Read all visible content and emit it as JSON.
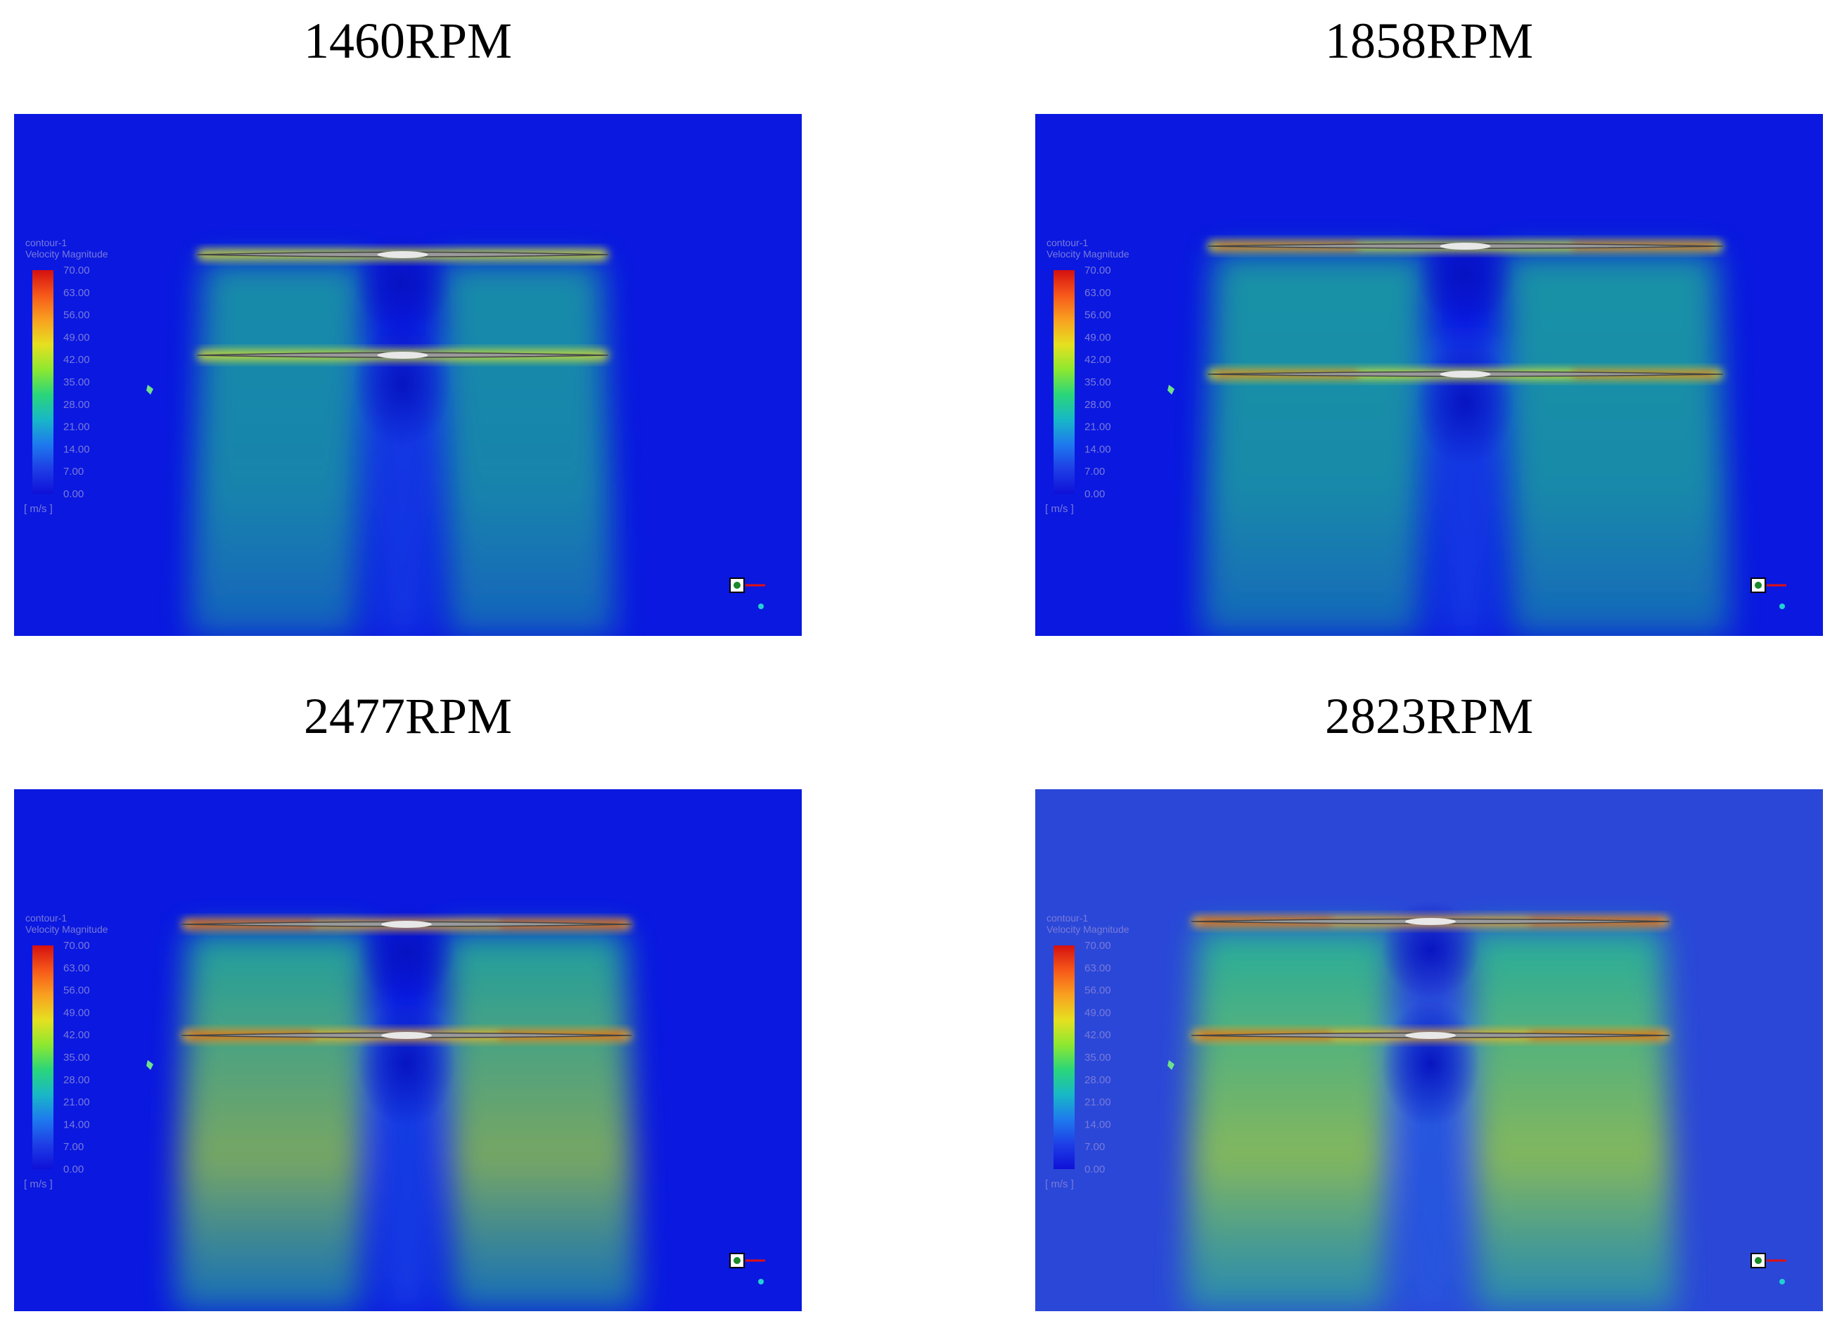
{
  "legend": {
    "name": "contour-1",
    "quantity": "Velocity Magnitude",
    "ticks": [
      "70.00",
      "63.00",
      "56.00",
      "49.00",
      "42.00",
      "35.00",
      "28.00",
      "21.00",
      "14.00",
      "7.00",
      "0.00"
    ],
    "unit": "[ m/s ]",
    "colors": [
      "#d41010",
      "#f7581a",
      "#f9a020",
      "#e6e020",
      "#8ee830",
      "#2ad67a",
      "#18b8c6",
      "#1e7aee",
      "#1e3ee6",
      "#0f10d8"
    ]
  },
  "panels": [
    {
      "title": "1460RPM",
      "rpm": 1460,
      "intensity": 0.55
    },
    {
      "title": "1858RPM",
      "rpm": 1858,
      "intensity": 0.65
    },
    {
      "title": "2477RPM",
      "rpm": 2477,
      "intensity": 0.85
    },
    {
      "title": "2823RPM",
      "rpm": 2823,
      "intensity": 0.92
    }
  ],
  "colors": {
    "background": "#0a18e0",
    "jet": "#22c98c",
    "jet_strong": "#a6e030",
    "tip": "#e03010",
    "blade": "#9a9a9a"
  }
}
